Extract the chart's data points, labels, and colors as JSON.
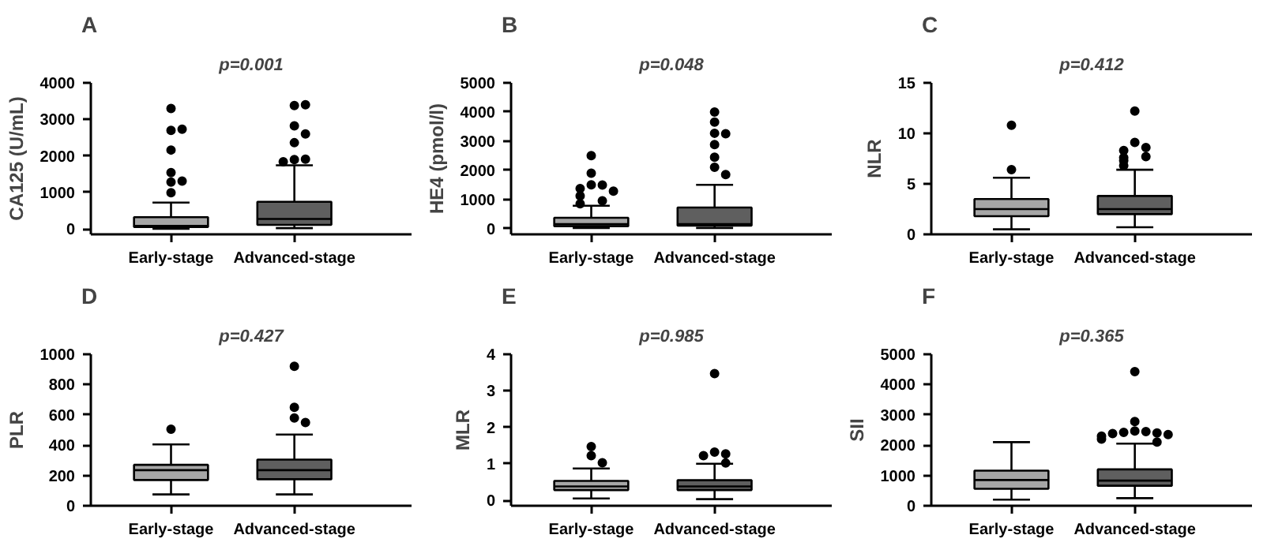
{
  "chart_data": [
    {
      "type": "box",
      "title": "A",
      "subtitle": "p=0.001",
      "ylabel": "CA125 (U/mL)",
      "categories": [
        "Early-stage",
        "Advanced-stage"
      ],
      "colors": [
        "#a6a6a6",
        "#5f5f5f"
      ],
      "ylim": [
        -150,
        4000
      ],
      "yticks": [
        0,
        1000,
        2000,
        3000,
        4000
      ],
      "boxes": [
        {
          "low": 0,
          "q1": 50,
          "median": 80,
          "q3": 320,
          "high": 720,
          "outliers": [
            3300,
            2700,
            2730,
            2160,
            1540,
            1280,
            1310,
            990
          ]
        },
        {
          "low": 20,
          "q1": 110,
          "median": 270,
          "q3": 740,
          "high": 1740,
          "outliers": [
            3380,
            3400,
            2820,
            2600,
            2360,
            1900,
            1910,
            1840
          ]
        }
      ]
    },
    {
      "type": "box",
      "title": "B",
      "subtitle": "p=0.048",
      "ylabel": "HE4 (pmol/l)",
      "categories": [
        "Early-stage",
        "Advanced-stage"
      ],
      "colors": [
        "#a6a6a6",
        "#5f5f5f"
      ],
      "ylim": [
        -200,
        5000
      ],
      "yticks": [
        0,
        1000,
        2000,
        3000,
        4000,
        5000
      ],
      "boxes": [
        {
          "low": 20,
          "q1": 80,
          "median": 150,
          "q3": 370,
          "high": 780,
          "outliers": [
            2500,
            1900,
            1500,
            1490,
            1370,
            1280,
            1120,
            950,
            850
          ]
        },
        {
          "low": 20,
          "q1": 100,
          "median": 150,
          "q3": 720,
          "high": 1500,
          "outliers": [
            4000,
            3650,
            3270,
            3250,
            2880,
            2450,
            2100,
            1850
          ]
        }
      ]
    },
    {
      "type": "box",
      "title": "C",
      "subtitle": "p=0.412",
      "ylabel": "NLR",
      "categories": [
        "Early-stage",
        "Advanced-stage"
      ],
      "colors": [
        "#a6a6a6",
        "#5f5f5f"
      ],
      "ylim": [
        0,
        15
      ],
      "yticks": [
        0,
        5,
        10,
        15
      ],
      "boxes": [
        {
          "low": 0.5,
          "q1": 1.8,
          "median": 2.5,
          "q3": 3.5,
          "high": 5.6,
          "outliers": [
            10.8,
            6.4
          ]
        },
        {
          "low": 0.7,
          "q1": 2.0,
          "median": 2.5,
          "q3": 3.8,
          "high": 6.4,
          "outliers": [
            12.2,
            9.1,
            8.6,
            8.3,
            7.7,
            7.6,
            7.3,
            6.8
          ]
        }
      ]
    },
    {
      "type": "box",
      "title": "D",
      "subtitle": "p=0.427",
      "ylabel": "PLR",
      "categories": [
        "Early-stage",
        "Advanced-stage"
      ],
      "colors": [
        "#a6a6a6",
        "#5f5f5f"
      ],
      "ylim": [
        0,
        1000
      ],
      "yticks": [
        0,
        200,
        400,
        600,
        800,
        1000
      ],
      "boxes": [
        {
          "low": 75,
          "q1": 170,
          "median": 235,
          "q3": 270,
          "high": 405,
          "outliers": [
            505
          ]
        },
        {
          "low": 75,
          "q1": 175,
          "median": 235,
          "q3": 305,
          "high": 470,
          "outliers": [
            920,
            650,
            580,
            550
          ]
        }
      ]
    },
    {
      "type": "box",
      "title": "E",
      "subtitle": "p=0.985",
      "ylabel": "MLR",
      "categories": [
        "Early-stage",
        "Advanced-stage"
      ],
      "colors": [
        "#a6a6a6",
        "#5f5f5f"
      ],
      "ylim": [
        -0.15,
        4
      ],
      "yticks": [
        0,
        1,
        2,
        3,
        4
      ],
      "boxes": [
        {
          "low": 0.05,
          "q1": 0.28,
          "median": 0.38,
          "q3": 0.53,
          "high": 0.87,
          "outliers": [
            1.47,
            1.22,
            1.03
          ]
        },
        {
          "low": 0.03,
          "q1": 0.28,
          "median": 0.38,
          "q3": 0.55,
          "high": 1.0,
          "outliers": [
            3.47,
            1.32,
            1.27,
            1.22,
            1.02
          ]
        }
      ]
    },
    {
      "type": "box",
      "title": "F",
      "subtitle": "p=0.365",
      "ylabel": "SII",
      "categories": [
        "Early-stage",
        "Advanced-stage"
      ],
      "colors": [
        "#a6a6a6",
        "#5f5f5f"
      ],
      "ylim": [
        0,
        5000
      ],
      "yticks": [
        0,
        1000,
        2000,
        3000,
        4000,
        5000
      ],
      "boxes": [
        {
          "low": 200,
          "q1": 560,
          "median": 850,
          "q3": 1160,
          "high": 2100
        },
        {
          "low": 250,
          "q1": 660,
          "median": 830,
          "q3": 1200,
          "high": 2050,
          "outliers": [
            4430,
            2780,
            2470,
            2450,
            2420,
            2400,
            2380,
            2350,
            2300,
            2200,
            2100
          ]
        }
      ]
    }
  ]
}
